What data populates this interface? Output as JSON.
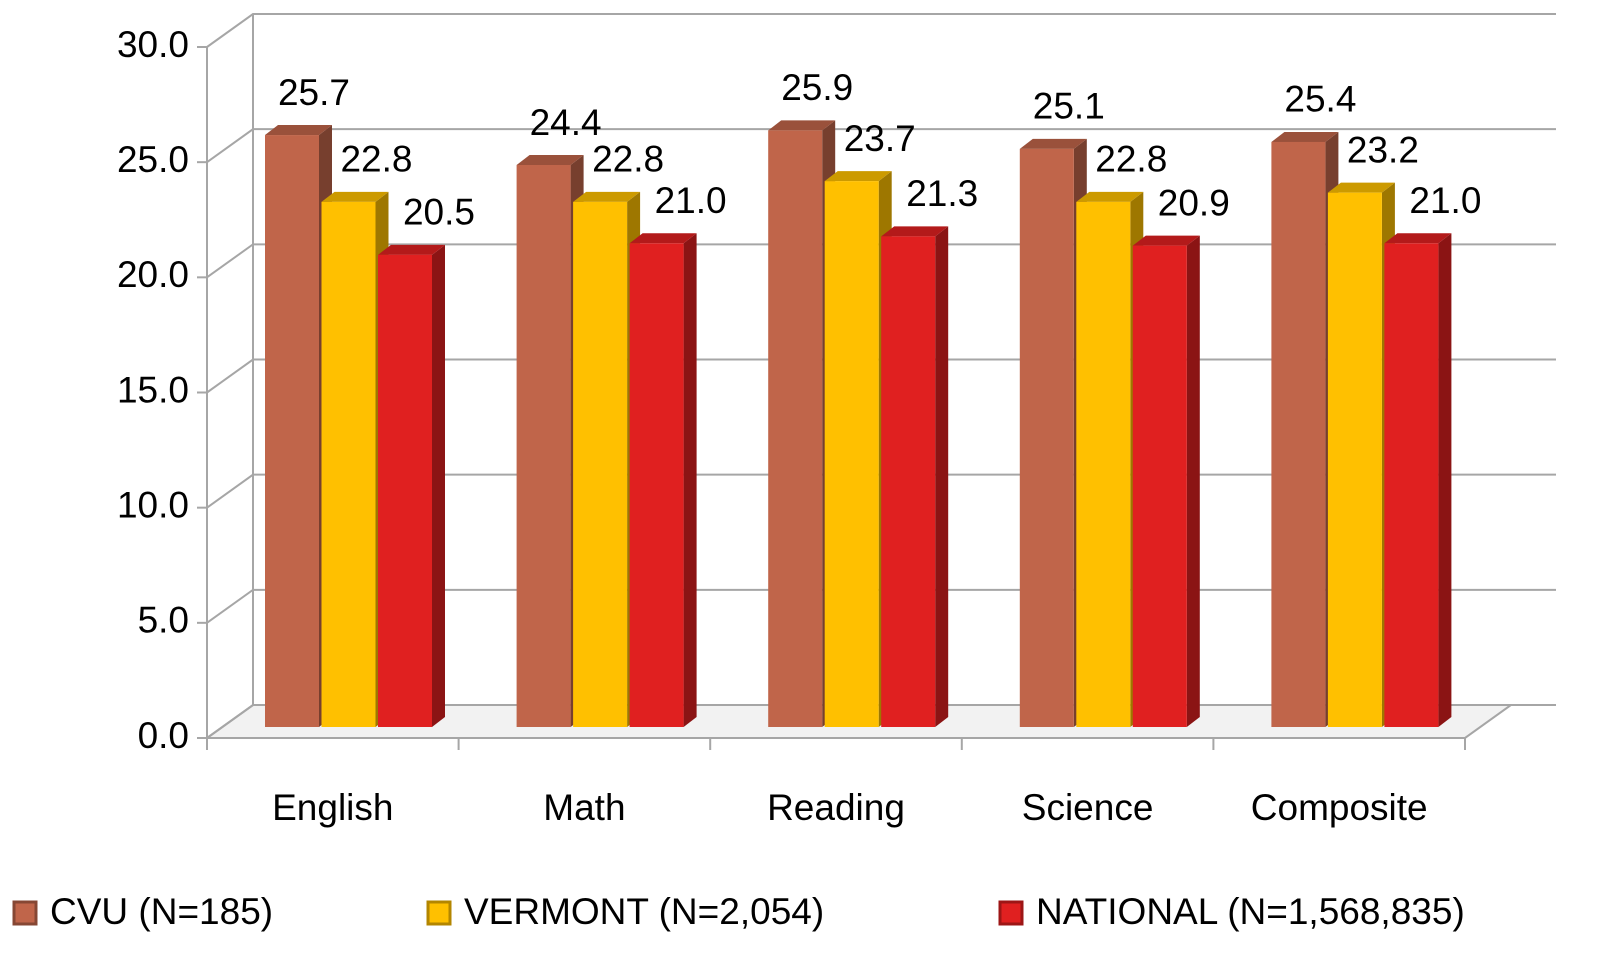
{
  "chart_data": {
    "type": "bar3d",
    "categories": [
      "English",
      "Math",
      "Reading",
      "Science",
      "Composite"
    ],
    "series": [
      {
        "name": "CVU (N=185)",
        "color": "#c0654a",
        "values": [
          25.7,
          24.4,
          25.9,
          25.1,
          25.4
        ],
        "value_labels": [
          "25.7",
          "24.4",
          "25.9",
          "25.1",
          "25.4"
        ]
      },
      {
        "name": "VERMONT (N=2,054)",
        "color": "#ffc000",
        "values": [
          22.8,
          22.8,
          23.7,
          22.8,
          23.2
        ],
        "value_labels": [
          "22.8",
          "22.8",
          "23.7",
          "22.8",
          "23.2"
        ]
      },
      {
        "name": "NATIONAL (N=1,568,835)",
        "color": "#e02020",
        "values": [
          20.5,
          21.0,
          21.3,
          20.9,
          21.0
        ],
        "value_labels": [
          "20.5",
          "21.0",
          "21.3",
          "20.9",
          "21.0"
        ]
      }
    ],
    "ylim": [
      0,
      30
    ],
    "yticks": [
      {
        "value": 0,
        "label": "0.0"
      },
      {
        "value": 5,
        "label": "5.0"
      },
      {
        "value": 10,
        "label": "10.0"
      },
      {
        "value": 15,
        "label": "15.0"
      },
      {
        "value": 20,
        "label": "20.0"
      },
      {
        "value": 25,
        "label": "25.0"
      },
      {
        "value": 30,
        "label": "30.0"
      }
    ],
    "grid": true,
    "legend": "bottom"
  }
}
